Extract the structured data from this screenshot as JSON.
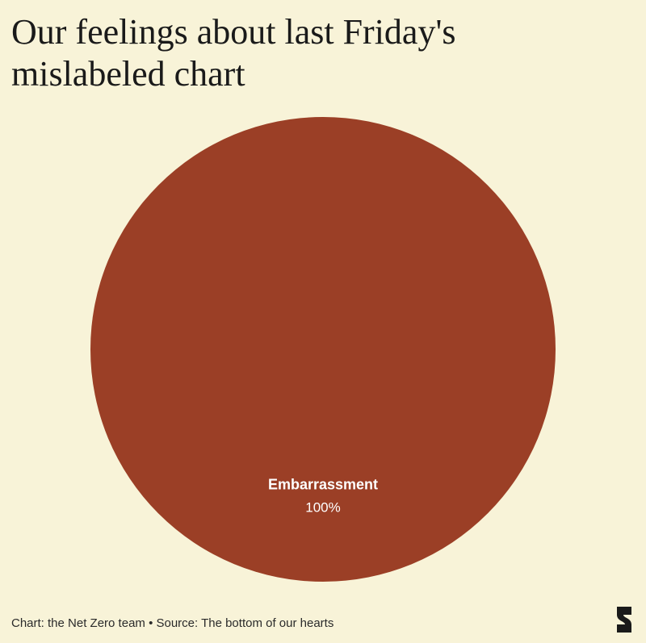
{
  "chart_data": {
    "type": "pie",
    "title": "Our feelings about last Friday's mislabeled chart",
    "categories": [
      "Embarrassment"
    ],
    "values": [
      100
    ],
    "value_labels": [
      "100%"
    ],
    "colors": [
      "#9b3f26"
    ],
    "source": "Chart: the Net Zero team • Source: The bottom of our hearts"
  }
}
